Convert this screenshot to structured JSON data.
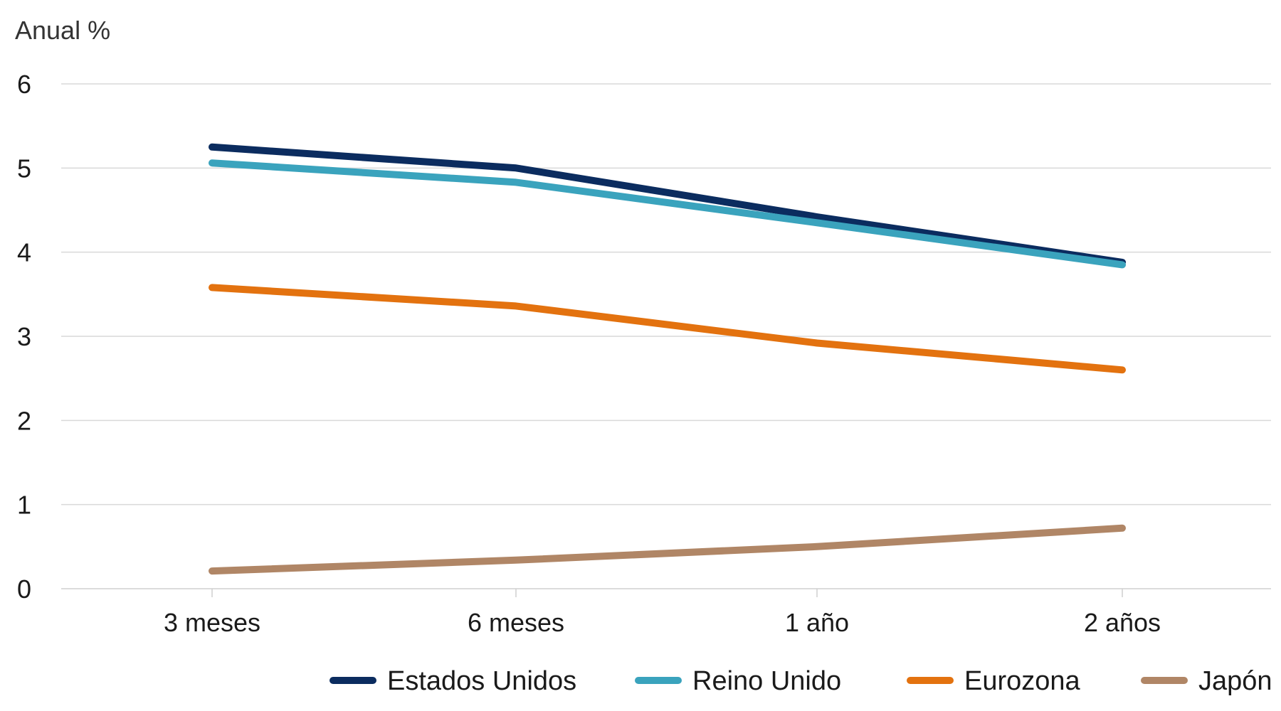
{
  "chart_data": {
    "type": "line",
    "ylabel": "Anual %",
    "ylim": [
      0,
      6
    ],
    "yticks": [
      0,
      1,
      2,
      3,
      4,
      5,
      6
    ],
    "grid": true,
    "legend_position": "bottom",
    "categories": [
      "3 meses",
      "6 meses",
      "1 año",
      "2 años"
    ],
    "series": [
      {
        "name": "Estados Unidos",
        "color": "#0b2c5f",
        "values": [
          5.25,
          5.0,
          4.42,
          3.88
        ]
      },
      {
        "name": "Reino Unido",
        "color": "#3aa3bd",
        "values": [
          5.06,
          4.83,
          4.35,
          3.85
        ]
      },
      {
        "name": "Eurozona",
        "color": "#e3720f",
        "values": [
          3.58,
          3.36,
          2.92,
          2.6
        ]
      },
      {
        "name": "Japón",
        "color": "#b08666",
        "values": [
          0.21,
          0.34,
          0.5,
          0.72
        ]
      }
    ]
  }
}
